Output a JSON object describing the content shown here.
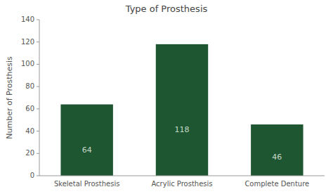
{
  "chart_data": {
    "type": "bar",
    "title": "Type of Prosthesis",
    "categories": [
      "Skeletal Prosthesis",
      "Acrylic Prosthesis",
      "Complete Denture"
    ],
    "values": [
      64,
      118,
      46
    ],
    "color": "#1e5631",
    "ylabel": "Number of Prosthesis",
    "ylim": [
      0,
      140
    ],
    "yticks": [
      0,
      20,
      40,
      60,
      80,
      100,
      120,
      140
    ],
    "grid": false,
    "data_labels": true
  }
}
